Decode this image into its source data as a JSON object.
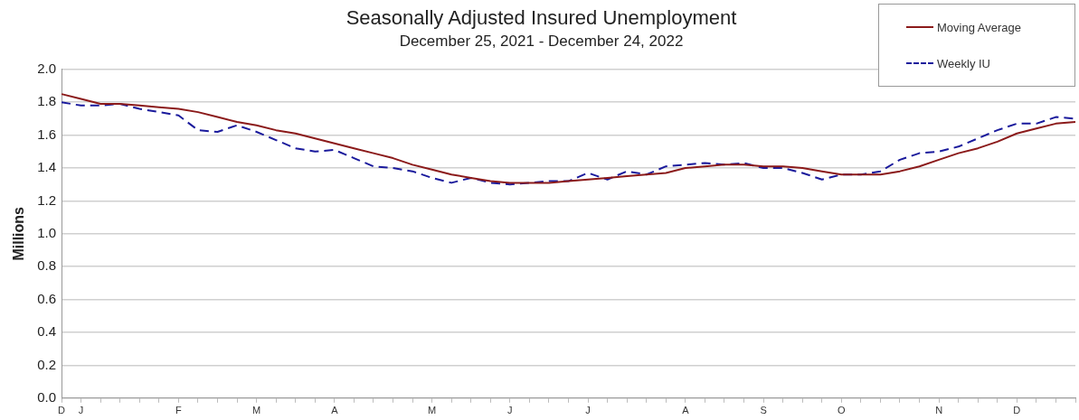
{
  "chart_data": {
    "type": "line",
    "title": "Seasonally Adjusted Insured Unemployment",
    "subtitle": "December 25, 2021 - December 24, 2022",
    "ylabel": "Millions",
    "categories": [
      "D",
      "J",
      null,
      null,
      null,
      null,
      "F",
      null,
      null,
      null,
      "M",
      null,
      null,
      null,
      "A",
      null,
      null,
      null,
      null,
      "M",
      null,
      null,
      null,
      "J",
      null,
      null,
      null,
      "J",
      null,
      null,
      null,
      null,
      "A",
      null,
      null,
      null,
      "S",
      null,
      null,
      null,
      "O",
      null,
      null,
      null,
      null,
      "N",
      null,
      null,
      null,
      "D",
      null,
      null,
      null
    ],
    "series": [
      {
        "name": "Moving Average",
        "color": "#8b1a1a",
        "line_style": "solid",
        "values": [
          1.85,
          1.82,
          1.79,
          1.79,
          1.78,
          1.77,
          1.76,
          1.74,
          1.71,
          1.68,
          1.66,
          1.63,
          1.61,
          1.58,
          1.55,
          1.52,
          1.49,
          1.46,
          1.42,
          1.39,
          1.36,
          1.34,
          1.32,
          1.31,
          1.31,
          1.31,
          1.32,
          1.33,
          1.34,
          1.35,
          1.36,
          1.37,
          1.4,
          1.41,
          1.42,
          1.42,
          1.41,
          1.41,
          1.4,
          1.38,
          1.36,
          1.36,
          1.36,
          1.38,
          1.41,
          1.45,
          1.49,
          1.52,
          1.56,
          1.61,
          1.64,
          1.67,
          1.68
        ]
      },
      {
        "name": "Weekly IU",
        "color": "#1a1a9c",
        "line_style": "dashed",
        "values": [
          1.8,
          1.78,
          1.78,
          1.79,
          1.76,
          1.74,
          1.72,
          1.63,
          1.62,
          1.66,
          1.62,
          1.57,
          1.52,
          1.5,
          1.51,
          1.46,
          1.41,
          1.4,
          1.38,
          1.34,
          1.31,
          1.34,
          1.31,
          1.3,
          1.31,
          1.32,
          1.32,
          1.37,
          1.33,
          1.38,
          1.36,
          1.41,
          1.42,
          1.43,
          1.42,
          1.43,
          1.4,
          1.4,
          1.37,
          1.33,
          1.36,
          1.36,
          1.38,
          1.45,
          1.49,
          1.5,
          1.53,
          1.58,
          1.63,
          1.67,
          1.67,
          1.71,
          1.7
        ]
      }
    ],
    "ylim": [
      0,
      2.0
    ],
    "yticks": [
      {
        "value": 0,
        "label": "0.0"
      },
      {
        "value": 0.2,
        "label": "0.2"
      },
      {
        "value": 0.4,
        "label": "0.4"
      },
      {
        "value": 0.6,
        "label": "0.6"
      },
      {
        "value": 0.8,
        "label": "0.8"
      },
      {
        "value": 1.0,
        "label": "1.0"
      },
      {
        "value": 1.2,
        "label": "1.2"
      },
      {
        "value": 1.4,
        "label": "1.4"
      },
      {
        "value": 1.6,
        "label": "1.6"
      },
      {
        "value": 1.8,
        "label": "1.8"
      },
      {
        "value": 2.0,
        "label": "2.0"
      }
    ],
    "grid": "y",
    "legend": "top right",
    "marker": "none"
  }
}
